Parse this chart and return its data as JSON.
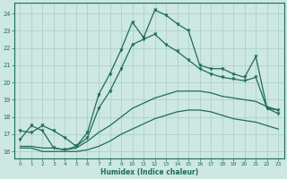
{
  "xlabel": "Humidex (Indice chaleur)",
  "x": [
    0,
    1,
    2,
    3,
    4,
    5,
    6,
    7,
    8,
    9,
    10,
    11,
    12,
    13,
    14,
    15,
    16,
    17,
    18,
    19,
    20,
    21,
    22,
    23
  ],
  "line_jagged": [
    16.7,
    17.5,
    17.2,
    16.2,
    16.1,
    16.3,
    17.1,
    19.3,
    20.5,
    21.9,
    23.5,
    22.6,
    24.2,
    23.9,
    23.4,
    23.0,
    21.0,
    20.8,
    20.8,
    20.5,
    20.3,
    21.5,
    18.5,
    18.2
  ],
  "line_smooth": [
    17.2,
    17.1,
    17.5,
    17.2,
    16.8,
    16.3,
    16.8,
    18.5,
    19.5,
    20.8,
    22.2,
    22.5,
    22.8,
    22.2,
    21.8,
    21.3,
    20.8,
    20.5,
    20.3,
    20.2,
    20.1,
    20.3,
    18.5,
    18.4
  ],
  "line_upper_diag": [
    16.3,
    16.3,
    16.2,
    16.2,
    16.1,
    16.2,
    16.6,
    17.1,
    17.5,
    18.0,
    18.5,
    18.8,
    19.1,
    19.3,
    19.5,
    19.5,
    19.5,
    19.4,
    19.2,
    19.1,
    19.0,
    18.9,
    18.6,
    18.4
  ],
  "line_lower_diag": [
    16.2,
    16.2,
    16.0,
    16.0,
    16.0,
    16.0,
    16.1,
    16.3,
    16.6,
    17.0,
    17.3,
    17.6,
    17.9,
    18.1,
    18.3,
    18.4,
    18.4,
    18.3,
    18.1,
    17.9,
    17.8,
    17.7,
    17.5,
    17.3
  ],
  "color": "#1e6b5c",
  "bg_color": "#cce8e0",
  "grid_color": "#a8ccc4",
  "ylim": [
    15.6,
    24.6
  ],
  "xlim": [
    -0.5,
    23.5
  ],
  "yticks": [
    16,
    17,
    18,
    19,
    20,
    21,
    22,
    23,
    24
  ],
  "xticks": [
    0,
    1,
    2,
    3,
    4,
    5,
    6,
    7,
    8,
    9,
    10,
    11,
    12,
    13,
    14,
    15,
    16,
    17,
    18,
    19,
    20,
    21,
    22,
    23
  ]
}
